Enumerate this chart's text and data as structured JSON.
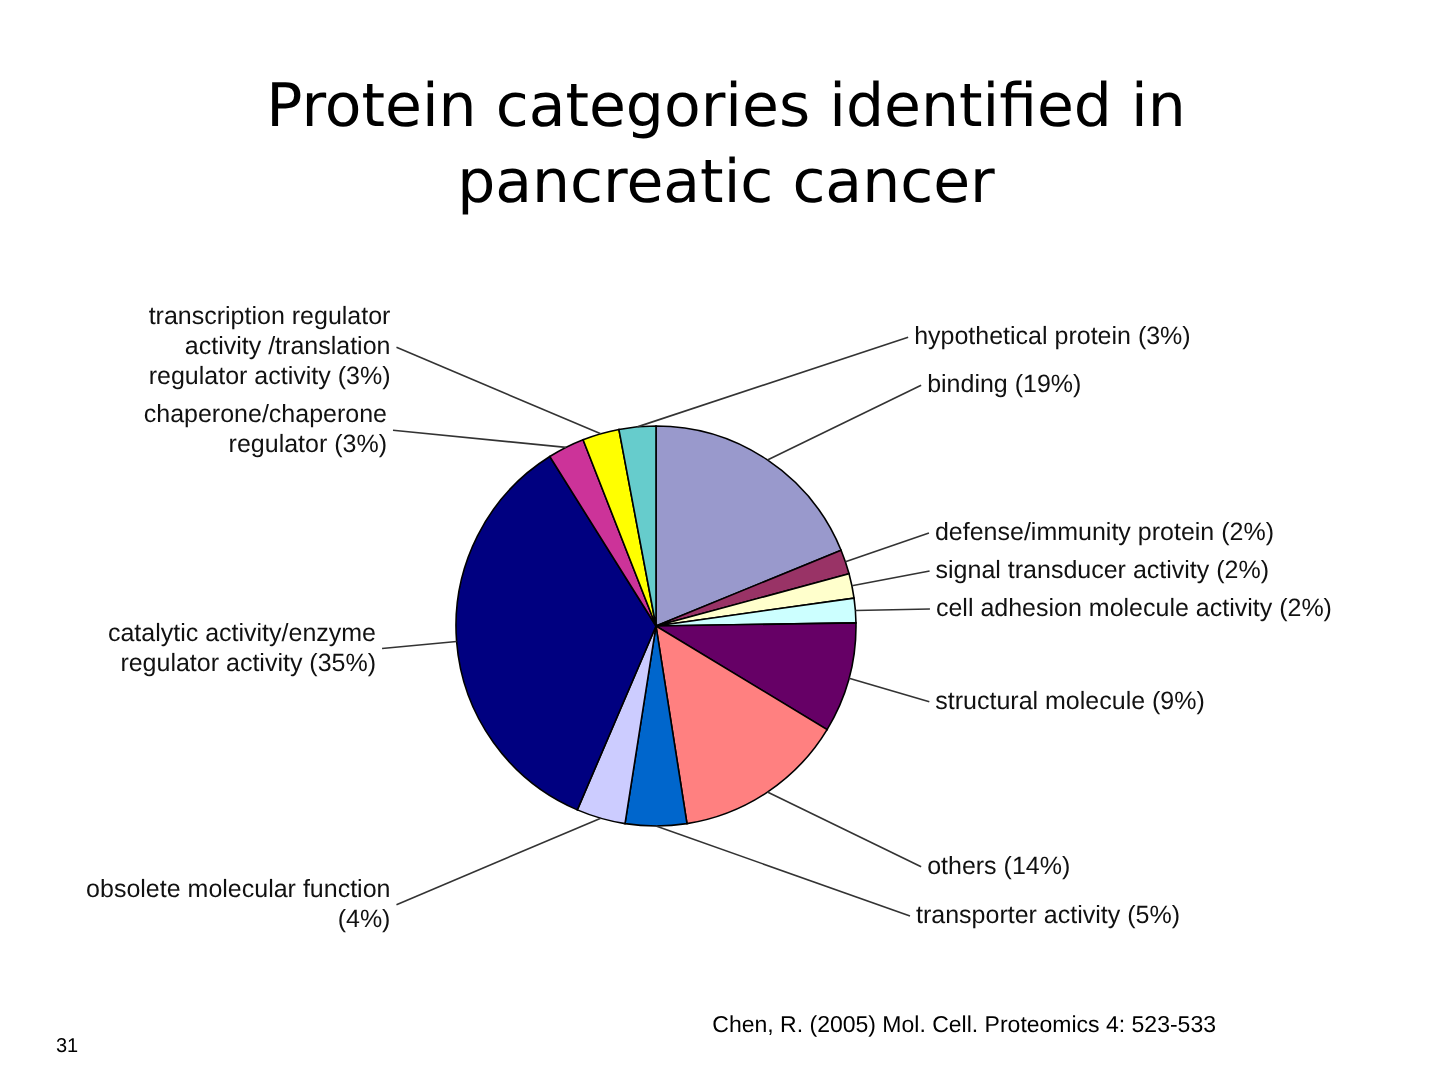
{
  "chart_data": {
    "type": "pie",
    "title": "Protein categories identified in pancreatic cancer",
    "categories": [
      "binding",
      "defense/immunity protein",
      "signal transducer activity",
      "cell adhesion molecule activity",
      "structural molecule",
      "others",
      "transporter activity",
      "obsolete molecular function",
      "catalytic activity/enzyme regulator activity",
      "chaperone/chaperone regulator",
      "transcription regulator activity /translation regulator activity",
      "hypothetical protein"
    ],
    "values": [
      19,
      2,
      2,
      2,
      9,
      14,
      5,
      4,
      35,
      3,
      3,
      3
    ],
    "value_labels": [
      "(19%)",
      "(2%)",
      "(2%)",
      "(2%)",
      "(9%)",
      "(14%)",
      "(5%)",
      "(4%)",
      "(35%)",
      "(3%)",
      "(3%)",
      "(3%)"
    ],
    "colors": [
      "#9999cc",
      "#993366",
      "#ffffcc",
      "#ccffff",
      "#660066",
      "#ff8080",
      "#0066cc",
      "#ccccff",
      "#000080",
      "#cc3399",
      "#ffff00",
      "#66cccc"
    ],
    "annotations": [
      "Chen, R. (2005)   Mol. Cell. Proteomics 4: 523-533",
      "31"
    ]
  }
}
